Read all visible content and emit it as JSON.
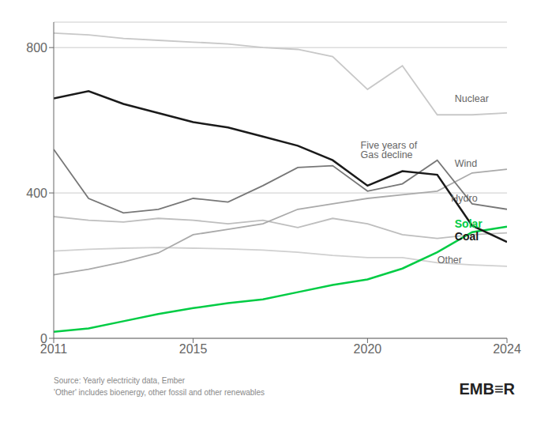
{
  "chart_data": {
    "type": "line",
    "x": [
      2011,
      2012,
      2013,
      2014,
      2015,
      2016,
      2017,
      2018,
      2019,
      2020,
      2021,
      2022,
      2023,
      2024
    ],
    "series": [
      {
        "name": "Nuclear",
        "color": "#c8c8c8",
        "values": [
          840,
          835,
          825,
          820,
          815,
          810,
          800,
          795,
          775,
          685,
          750,
          615,
          615,
          620
        ]
      },
      {
        "name": "Other",
        "color": "#d0d0d0",
        "values": [
          240,
          245,
          248,
          250,
          248,
          246,
          243,
          237,
          228,
          222,
          222,
          208,
          202,
          198
        ]
      },
      {
        "name": "Hydro",
        "color": "#bebebe",
        "values": [
          335,
          325,
          320,
          330,
          325,
          315,
          325,
          305,
          330,
          315,
          285,
          275,
          285,
          290
        ]
      },
      {
        "name": "Wind",
        "color": "#aaaaaa",
        "values": [
          175,
          190,
          210,
          235,
          285,
          300,
          315,
          355,
          370,
          385,
          395,
          405,
          455,
          465
        ]
      },
      {
        "name": "Gas",
        "color": "#777777",
        "values": [
          520,
          385,
          345,
          355,
          385,
          375,
          420,
          470,
          475,
          405,
          425,
          490,
          370,
          355
        ]
      },
      {
        "name": "Solar",
        "color": "#00cc44",
        "values": [
          18,
          27,
          47,
          67,
          83,
          97,
          107,
          127,
          147,
          162,
          192,
          237,
          292,
          307
        ]
      },
      {
        "name": "Coal",
        "color": "#1a1a1a",
        "values": [
          660,
          680,
          645,
          620,
          595,
          580,
          555,
          530,
          490,
          420,
          460,
          450,
          310,
          265
        ]
      }
    ],
    "xlim": [
      2011,
      2024
    ],
    "xticks": [
      2011,
      2015,
      2020,
      2024
    ],
    "ylim": [
      0,
      870
    ],
    "yticks": [
      0,
      400,
      800
    ],
    "grid": "y",
    "legend": false,
    "annotations": [
      {
        "text": "Nuclear",
        "x": 2022.5,
        "y": 660
      },
      {
        "text": "Wind",
        "x": 2022.5,
        "y": 480
      },
      {
        "text": "Five years of",
        "x": 2019.8,
        "y": 530
      },
      {
        "text": "Gas decline",
        "x": 2019.8,
        "y": 505
      },
      {
        "text": "Hydro",
        "x": 2022.4,
        "y": 385
      },
      {
        "text": "Solar",
        "x": 2022.5,
        "y": 315,
        "color": "#00cc44"
      },
      {
        "text": "Coal",
        "x": 2022.5,
        "y": 280,
        "color": "#1a1a1a"
      },
      {
        "text": "Other",
        "x": 2022.0,
        "y": 215
      }
    ],
    "source": [
      "Source: Yearly electricity data, Ember",
      "'Other' includes bioenergy, other fossil and other renewables"
    ],
    "logo": "EMB≡R"
  }
}
